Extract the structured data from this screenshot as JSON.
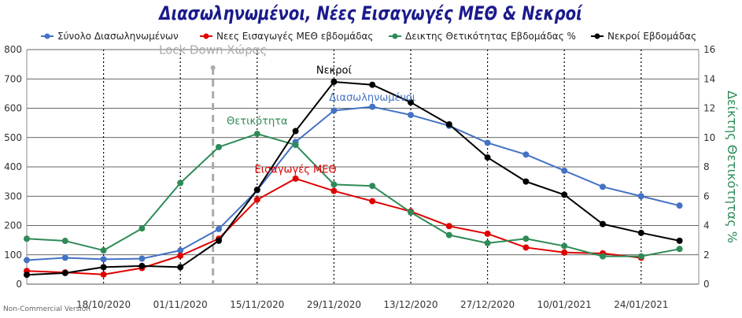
{
  "colors": {
    "title": "#1a1a8c",
    "hospitalized": "#4472c4",
    "icu": "#e00000",
    "positivity": "#2e8b57",
    "deaths": "#000000",
    "lockdown": "#aaaaaa",
    "grid": "#000000"
  },
  "chart_data": {
    "type": "line",
    "title": "Διασωληνωμένοι, Νέες Εισαγωγές ΜΕΘ & Νεκροί",
    "x_tick_labels": [
      "18/10/2020",
      "01/11/2020",
      "15/11/2020",
      "29/11/2020",
      "13/12/2020",
      "27/12/2020",
      "10/01/2021",
      "24/01/2021"
    ],
    "x_tick_positions": [
      2,
      4,
      6,
      8,
      10,
      12,
      14,
      16
    ],
    "x_range": [
      0,
      17.5
    ],
    "y_left": {
      "range": [
        0,
        800
      ],
      "ticks": [
        0,
        100,
        200,
        300,
        400,
        500,
        600,
        700,
        800
      ]
    },
    "y_right": {
      "label": "Δείκτης Θετικότητας %",
      "range": [
        0,
        16
      ],
      "ticks": [
        0,
        2,
        4,
        6,
        8,
        10,
        12,
        14,
        16
      ]
    },
    "grid": true,
    "legend_position": "top",
    "series": [
      {
        "name": "Σύνολο Διασωληνωμένων",
        "axis": "left",
        "color_key": "hospitalized",
        "x": [
          0,
          1,
          2,
          3,
          4,
          5,
          6,
          7,
          8,
          9,
          10,
          11,
          12,
          13,
          14,
          15,
          16,
          17
        ],
        "values": [
          82,
          90,
          85,
          87,
          115,
          188,
          320,
          485,
          592,
          605,
          577,
          540,
          482,
          442,
          387,
          332,
          300,
          268
        ]
      },
      {
        "name": "Νεες Εισαγωγές ΜΕΘ εβδομάδας",
        "axis": "left",
        "color_key": "icu",
        "x": [
          0,
          1,
          2,
          3,
          4,
          5,
          6,
          7,
          8,
          9,
          10,
          11,
          12,
          13,
          14,
          15,
          16
        ],
        "values": [
          45,
          40,
          33,
          55,
          97,
          155,
          288,
          360,
          318,
          283,
          248,
          198,
          172,
          125,
          108,
          105,
          90
        ]
      },
      {
        "name": "Δεικτης Θετικότητας Εβδομάδας %",
        "axis": "right",
        "color_key": "positivity",
        "x": [
          0,
          1,
          2,
          3,
          4,
          5,
          6,
          7,
          8,
          9,
          10,
          11,
          12,
          13,
          14,
          15,
          16,
          17
        ],
        "values": [
          3.1,
          2.95,
          2.3,
          3.8,
          6.9,
          9.35,
          10.25,
          9.5,
          6.8,
          6.7,
          4.9,
          3.35,
          2.8,
          3.1,
          2.6,
          1.9,
          1.9,
          2.4
        ]
      },
      {
        "name": "Νεκροί Εβδομάδας",
        "axis": "left",
        "color_key": "deaths",
        "x": [
          0,
          1,
          2,
          3,
          4,
          5,
          6,
          7,
          8,
          9,
          10,
          11,
          12,
          13,
          14,
          15,
          16,
          17
        ],
        "values": [
          32,
          38,
          58,
          62,
          58,
          148,
          322,
          522,
          690,
          680,
          620,
          545,
          432,
          350,
          305,
          205,
          175,
          148
        ]
      }
    ],
    "annotations": [
      {
        "text": "Lock Down Χώρας",
        "x": 4.85,
        "y": 785,
        "color_key": "lockdown",
        "size": 15
      },
      {
        "text": "Νεκροί",
        "x": 8.0,
        "y": 718,
        "color_key": "deaths",
        "size": 13
      },
      {
        "text": "Διασωληνωμένοι",
        "x": 9.0,
        "y": 625,
        "color_key": "hospitalized",
        "size": 13
      },
      {
        "text": "Θετικότητα",
        "x": 6.0,
        "y": 545,
        "color_key": "positivity",
        "size": 13
      },
      {
        "text": "Εισαγωγές ΜΕΘ",
        "x": 7.0,
        "y": 380,
        "color_key": "icu",
        "size": 13
      }
    ],
    "lockdown_x": 4.85
  },
  "footnote": "Non-Commercial Version"
}
